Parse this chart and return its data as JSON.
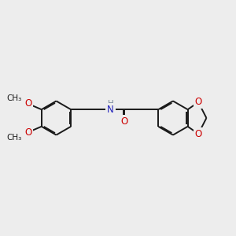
{
  "bg_color": "#EDEDED",
  "bond_color": "#1A1A1A",
  "bond_width": 1.4,
  "dbo": 0.055,
  "atom_colors": {
    "O": "#CC0000",
    "N": "#2222BB",
    "C": "#1A1A1A"
  },
  "font_size": 8.5,
  "figsize": [
    3.0,
    3.0
  ],
  "dpi": 100,
  "xlim": [
    0,
    12
  ],
  "ylim": [
    1.5,
    9.5
  ]
}
